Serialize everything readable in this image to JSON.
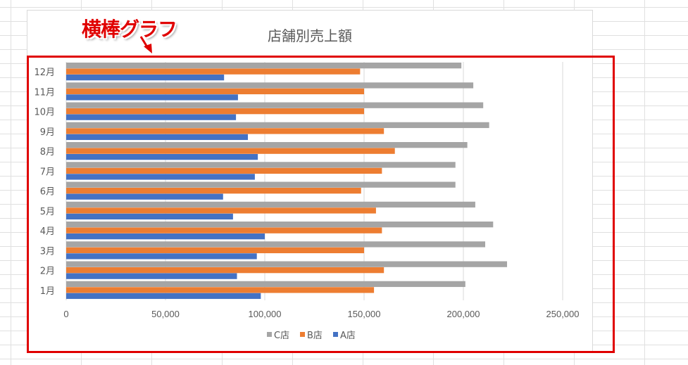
{
  "annotation": {
    "label": "横棒グラフ",
    "color": "#e00000"
  },
  "chart_data": {
    "type": "bar",
    "orientation": "horizontal",
    "title": "店舗別売上額",
    "categories": [
      "1月",
      "2月",
      "3月",
      "4月",
      "5月",
      "6月",
      "7月",
      "8月",
      "9月",
      "10月",
      "11月",
      "12月"
    ],
    "series": [
      {
        "name": "A店",
        "color": "#4472c4",
        "values": [
          98000,
          86000,
          96000,
          100000,
          84000,
          79000,
          95000,
          96500,
          91500,
          85500,
          86500,
          79500
        ]
      },
      {
        "name": "B店",
        "color": "#ed7d31",
        "values": [
          155000,
          160000,
          150000,
          159000,
          156000,
          148500,
          159000,
          165500,
          160000,
          150000,
          150000,
          148000
        ]
      },
      {
        "name": "C店",
        "color": "#a5a5a5",
        "values": [
          201000,
          222000,
          211000,
          215000,
          206000,
          196000,
          196000,
          202000,
          213000,
          210000,
          205000,
          199000
        ]
      }
    ],
    "xlim": [
      0,
      250000
    ],
    "xticks": [
      "0",
      "50,000",
      "100,000",
      "150,000",
      "200,000",
      "250,000"
    ],
    "grid": true,
    "legend": "bottom",
    "legend_order": [
      "C店",
      "B店",
      "A店"
    ]
  }
}
